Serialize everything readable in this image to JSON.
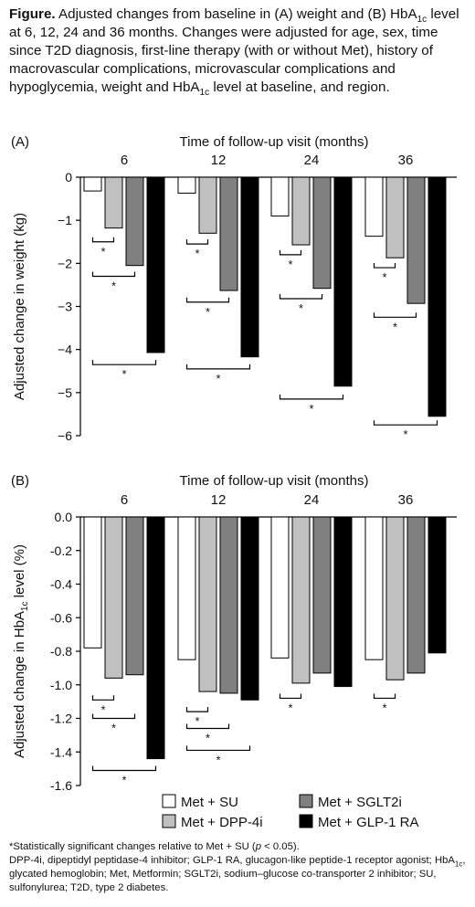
{
  "caption": {
    "figure_label": "Figure.",
    "text_a": " Adjusted changes from baseline in (A) weight and (B) HbA",
    "sub": "1c",
    "text_b": " level at 6, 12, 24 and 36 months. Changes were adjusted for age, sex, time since T2D diagnosis, first-line therapy (with or without Met), history of macrovascular complications, microvascular complications and hypoglycemia, weight and HbA",
    "sub2": "1c",
    "text_c": " level at baseline, and region."
  },
  "legend": {
    "items": [
      {
        "label": "Met + SU",
        "color": "#ffffff"
      },
      {
        "label": "Met + SGLT2i",
        "color": "#808080"
      },
      {
        "label": "Met + DPP-4i",
        "color": "#c0c0c0"
      },
      {
        "label": "Met + GLP-1 RA",
        "color": "#000000"
      }
    ]
  },
  "chart_data": [
    {
      "type": "bar",
      "panel_label": "(A)",
      "title": "Time of follow-up visit (months)",
      "categories": [
        "6",
        "12",
        "24",
        "36"
      ],
      "ylabel": "Adjusted change in weight (kg)",
      "ylabel_sub": "",
      "ylabel_tail": "",
      "ylim": [
        -6,
        0
      ],
      "yticks": [
        0,
        -1,
        -2,
        -3,
        -4,
        -5,
        -6
      ],
      "ytick_labels": [
        "0",
        "−1",
        "−2",
        "−3",
        "−4",
        "−5",
        "−6"
      ],
      "series": [
        {
          "name": "Met + SU",
          "color": "#ffffff",
          "values": [
            -0.32,
            -0.37,
            -0.9,
            -1.37
          ]
        },
        {
          "name": "Met + DPP-4i",
          "color": "#c0c0c0",
          "values": [
            -1.18,
            -1.3,
            -1.57,
            -1.87
          ]
        },
        {
          "name": "Met + SGLT2i",
          "color": "#808080",
          "values": [
            -2.05,
            -2.63,
            -2.58,
            -2.93
          ]
        },
        {
          "name": "Met + GLP-1 RA",
          "color": "#000000",
          "values": [
            -4.07,
            -4.17,
            -4.85,
            -5.55
          ]
        }
      ],
      "significance": [
        {
          "group": 0,
          "vs_series": 1,
          "y": -1.5,
          "label": "*"
        },
        {
          "group": 0,
          "vs_series": 2,
          "y": -2.3,
          "label": "*"
        },
        {
          "group": 0,
          "vs_series": 3,
          "y": -4.35,
          "label": "*"
        },
        {
          "group": 1,
          "vs_series": 1,
          "y": -1.55,
          "label": "*"
        },
        {
          "group": 1,
          "vs_series": 2,
          "y": -2.9,
          "label": "*"
        },
        {
          "group": 1,
          "vs_series": 3,
          "y": -4.45,
          "label": "*"
        },
        {
          "group": 2,
          "vs_series": 1,
          "y": -1.8,
          "label": "*"
        },
        {
          "group": 2,
          "vs_series": 2,
          "y": -2.82,
          "label": "*"
        },
        {
          "group": 2,
          "vs_series": 3,
          "y": -5.15,
          "label": "*"
        },
        {
          "group": 3,
          "vs_series": 1,
          "y": -2.1,
          "label": "*"
        },
        {
          "group": 3,
          "vs_series": 2,
          "y": -3.25,
          "label": "*"
        },
        {
          "group": 3,
          "vs_series": 3,
          "y": -5.75,
          "label": "*"
        }
      ]
    },
    {
      "type": "bar",
      "panel_label": "(B)",
      "title": "Time of follow-up visit (months)",
      "categories": [
        "6",
        "12",
        "24",
        "36"
      ],
      "ylabel": "Adjusted change in HbA",
      "ylabel_sub": "1c",
      "ylabel_tail": " level (%)",
      "ylim": [
        -1.6,
        0
      ],
      "yticks": [
        0,
        -0.2,
        -0.4,
        -0.6,
        -0.8,
        -1.0,
        -1.2,
        -1.4,
        -1.6
      ],
      "ytick_labels": [
        "0.0",
        "-0.2",
        "-0.4",
        "-0.6",
        "-0.8",
        "-1.0",
        "-1.2",
        "-1.4",
        "-1.6"
      ],
      "series": [
        {
          "name": "Met + SU",
          "color": "#ffffff",
          "values": [
            -0.78,
            -0.85,
            -0.84,
            -0.85
          ]
        },
        {
          "name": "Met + DPP-4i",
          "color": "#c0c0c0",
          "values": [
            -0.96,
            -1.04,
            -0.99,
            -0.97
          ]
        },
        {
          "name": "Met + SGLT2i",
          "color": "#808080",
          "values": [
            -0.94,
            -1.05,
            -0.93,
            -0.93
          ]
        },
        {
          "name": "Met + GLP-1 RA",
          "color": "#000000",
          "values": [
            -1.44,
            -1.09,
            -1.01,
            -0.81
          ]
        }
      ],
      "significance": [
        {
          "group": 0,
          "vs_series": 1,
          "y": -1.09,
          "label": "*"
        },
        {
          "group": 0,
          "vs_series": 2,
          "y": -1.2,
          "label": "*"
        },
        {
          "group": 0,
          "vs_series": 3,
          "y": -1.51,
          "label": "*"
        },
        {
          "group": 1,
          "vs_series": 1,
          "y": -1.16,
          "label": "*"
        },
        {
          "group": 1,
          "vs_series": 2,
          "y": -1.26,
          "label": "*"
        },
        {
          "group": 1,
          "vs_series": 3,
          "y": -1.39,
          "label": "*"
        },
        {
          "group": 2,
          "vs_series": 1,
          "y": -1.08,
          "label": "*"
        },
        {
          "group": 3,
          "vs_series": 1,
          "y": -1.08,
          "label": "*"
        }
      ]
    }
  ],
  "footnotes": {
    "line1_a": "*Statistically significant changes relative to Met + SU (",
    "line1_p": "p",
    "line1_b": " < 0.05).",
    "line2_a": "DPP-4i, dipeptidyl peptidase-4 inhibitor; GLP-1 RA, glucagon-like peptide-1 receptor agonist; HbA",
    "line2_sub": "1c",
    "line2_b": ", glycated hemoglobin; Met, Metformin; SGLT2i, sodium–glucose co-transporter 2 inhibitor; SU, sulfonylurea; T2D, type 2 diabetes."
  }
}
